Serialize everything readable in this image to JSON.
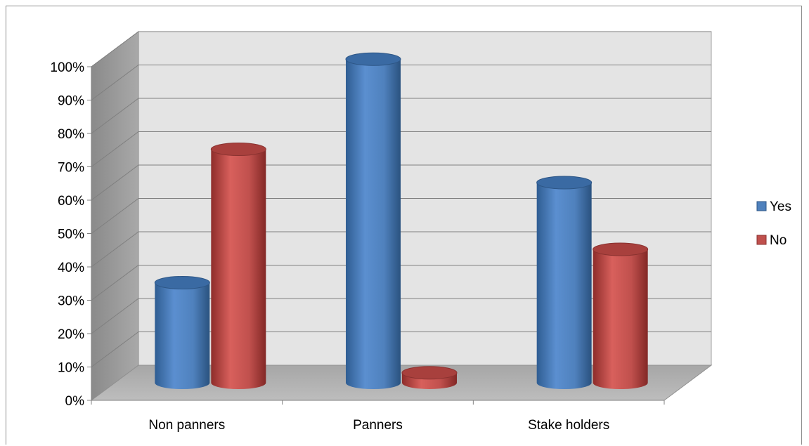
{
  "chart_data": {
    "type": "bar",
    "categories": [
      "Non panners",
      "Panners",
      "Stake holders"
    ],
    "series": [
      {
        "name": "Yes",
        "values": [
          30,
          97,
          60
        ],
        "color": "#4f81bd"
      },
      {
        "name": "No",
        "values": [
          70,
          3,
          40
        ],
        "color": "#c0504d"
      }
    ],
    "ylim": [
      0,
      100
    ],
    "y_ticks": [
      "0%",
      "10%",
      "20%",
      "30%",
      "40%",
      "50%",
      "60%",
      "70%",
      "80%",
      "90%",
      "100%"
    ],
    "title": "",
    "xlabel": "",
    "ylabel": "",
    "grid": true,
    "style": "3d-cylinder",
    "legend_position": "right"
  }
}
